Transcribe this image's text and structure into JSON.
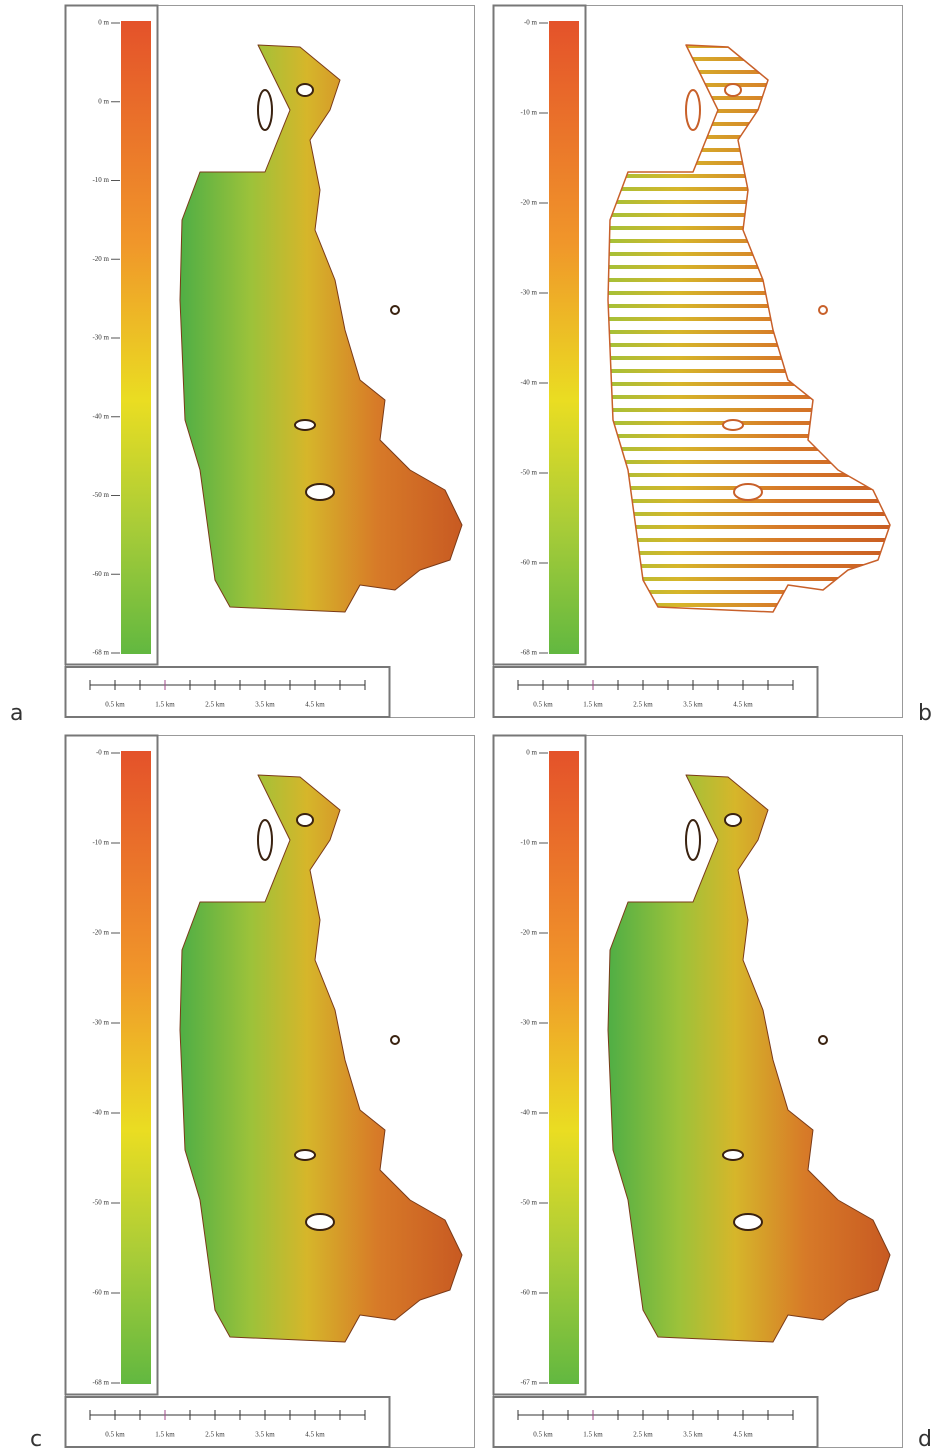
{
  "panels": [
    {
      "label": "a",
      "colorbar_ticks": [
        "0 m",
        "0 m",
        "-10 m",
        "-20 m",
        "-30 m",
        "-40 m",
        "-50 m",
        "-60 m",
        "-68 m"
      ],
      "scale_labels": [
        "0.5 km",
        "1.5 km",
        "2.5 km",
        "3.5 km",
        "4.5 km"
      ]
    },
    {
      "label": "b",
      "colorbar_ticks": [
        "-0 m",
        "-10 m",
        "-20 m",
        "-30 m",
        "-40 m",
        "-50 m",
        "-60 m",
        "-68 m"
      ],
      "scale_labels": [
        "0.5 km",
        "1.5 km",
        "2.5 km",
        "3.5 km",
        "4.5 km"
      ]
    },
    {
      "label": "c",
      "colorbar_ticks": [
        "-0 m",
        "-10 m",
        "-20 m",
        "-30 m",
        "-40 m",
        "-50 m",
        "-60 m",
        "-68 m"
      ],
      "scale_labels": [
        "0.5 km",
        "1.5 km",
        "2.5 km",
        "3.5 km",
        "4.5 km"
      ]
    },
    {
      "label": "d",
      "colorbar_ticks": [
        "0 m",
        "-10 m",
        "-20 m",
        "-30 m",
        "-40 m",
        "-50 m",
        "-60 m",
        "-67 m"
      ],
      "scale_labels": [
        "0.5 km",
        "1.5 km",
        "2.5 km",
        "3.5 km",
        "4.5 km"
      ]
    }
  ]
}
